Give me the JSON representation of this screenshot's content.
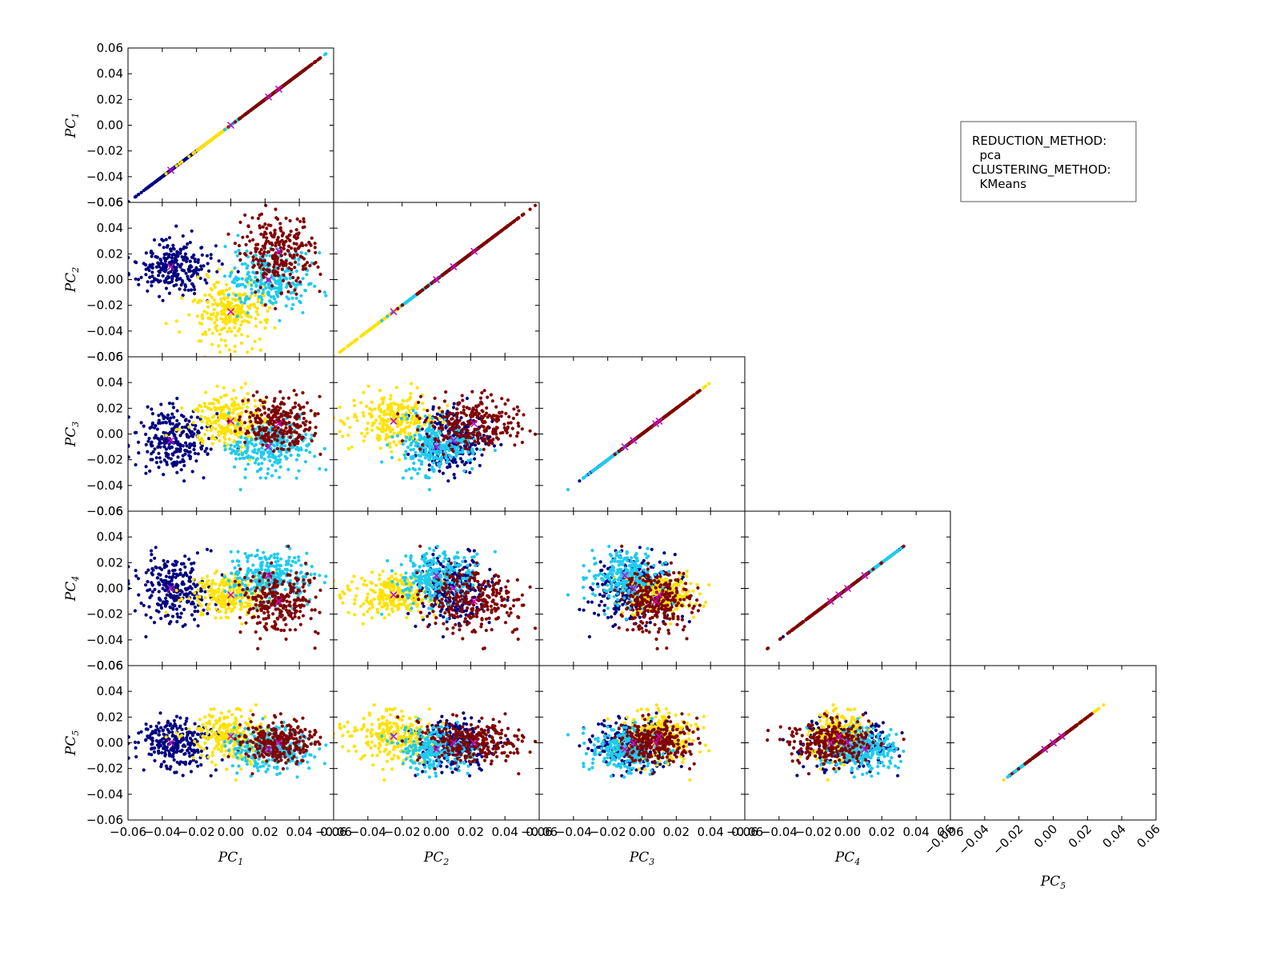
{
  "chart_data": {
    "type": "scatter",
    "layout": "lower-triangular scatter matrix",
    "variables": [
      "PC1",
      "PC2",
      "PC3",
      "PC4",
      "PC5"
    ],
    "axis_labels": [
      "PC",
      "PC",
      "PC",
      "PC",
      "PC"
    ],
    "axis_subscripts": [
      "1",
      "2",
      "3",
      "4",
      "5"
    ],
    "xlim": [
      -0.06,
      0.06
    ],
    "ylim": [
      -0.06,
      0.06
    ],
    "ticks": [
      "−0.06",
      "−0.04",
      "−0.02",
      "0.00",
      "0.02",
      "0.04",
      "0.06"
    ],
    "tick_values": [
      -0.06,
      -0.04,
      -0.02,
      0.0,
      0.02,
      0.04,
      0.06
    ],
    "grid": false,
    "clusters": [
      {
        "color": "#000080",
        "center": [
          -0.035,
          0.01,
          -0.005,
          0.0,
          0.0
        ],
        "spread": [
          0.012,
          0.01,
          0.012,
          0.013,
          0.01
        ]
      },
      {
        "color": "#ffe200",
        "center": [
          0.0,
          -0.025,
          0.01,
          -0.005,
          0.005
        ],
        "spread": [
          0.012,
          0.012,
          0.01,
          0.008,
          0.009
        ]
      },
      {
        "color": "#1ecbf0",
        "center": [
          0.022,
          0.0,
          -0.01,
          0.01,
          -0.005
        ],
        "spread": [
          0.012,
          0.012,
          0.01,
          0.01,
          0.008
        ]
      },
      {
        "color": "#800000",
        "center": [
          0.028,
          0.022,
          0.008,
          -0.01,
          0.0
        ],
        "spread": [
          0.01,
          0.015,
          0.01,
          0.012,
          0.008
        ]
      }
    ],
    "centroid_marker": {
      "symbol": "x",
      "color": "#cc00cc"
    },
    "legend": {
      "placement": "top-right",
      "lines": [
        "REDUCTION_METHOD:",
        "  pca",
        "CLUSTERING_METHOD:",
        "  KMeans"
      ]
    }
  }
}
